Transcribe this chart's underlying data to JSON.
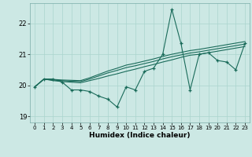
{
  "title": "",
  "xlabel": "Humidex (Indice chaleur)",
  "ylabel": "",
  "bg_color": "#cce8e4",
  "grid_color": "#aad4ce",
  "line_color": "#1a6b5a",
  "xlim": [
    -0.5,
    23.5
  ],
  "ylim": [
    18.8,
    22.65
  ],
  "yticks": [
    19,
    20,
    21,
    22
  ],
  "xticks": [
    0,
    1,
    2,
    3,
    4,
    5,
    6,
    7,
    8,
    9,
    10,
    11,
    12,
    13,
    14,
    15,
    16,
    17,
    18,
    19,
    20,
    21,
    22,
    23
  ],
  "x": [
    0,
    1,
    2,
    3,
    4,
    5,
    6,
    7,
    8,
    9,
    10,
    11,
    12,
    13,
    14,
    15,
    16,
    17,
    18,
    19,
    20,
    21,
    22,
    23
  ],
  "y_main": [
    19.95,
    20.2,
    20.2,
    20.1,
    19.85,
    19.85,
    19.8,
    19.65,
    19.55,
    19.3,
    19.95,
    19.85,
    20.45,
    20.55,
    21.0,
    22.45,
    21.35,
    19.85,
    21.0,
    21.05,
    20.8,
    20.75,
    20.5,
    21.35
  ],
  "y_line2": [
    19.95,
    20.2,
    20.15,
    20.12,
    20.1,
    20.08,
    20.15,
    20.22,
    20.3,
    20.37,
    20.45,
    20.52,
    20.6,
    20.67,
    20.75,
    20.82,
    20.9,
    20.97,
    21.0,
    21.05,
    21.1,
    21.15,
    21.2,
    21.25
  ],
  "y_line3": [
    19.95,
    20.2,
    20.17,
    20.15,
    20.13,
    20.12,
    20.2,
    20.3,
    20.4,
    20.48,
    20.57,
    20.63,
    20.7,
    20.77,
    20.85,
    20.92,
    20.98,
    21.04,
    21.08,
    21.13,
    21.18,
    21.23,
    21.28,
    21.33
  ],
  "y_line4": [
    19.95,
    20.2,
    20.19,
    20.17,
    20.16,
    20.15,
    20.24,
    20.35,
    20.46,
    20.55,
    20.65,
    20.71,
    20.78,
    20.85,
    20.93,
    21.0,
    21.06,
    21.12,
    21.16,
    21.21,
    21.26,
    21.31,
    21.36,
    21.41
  ]
}
